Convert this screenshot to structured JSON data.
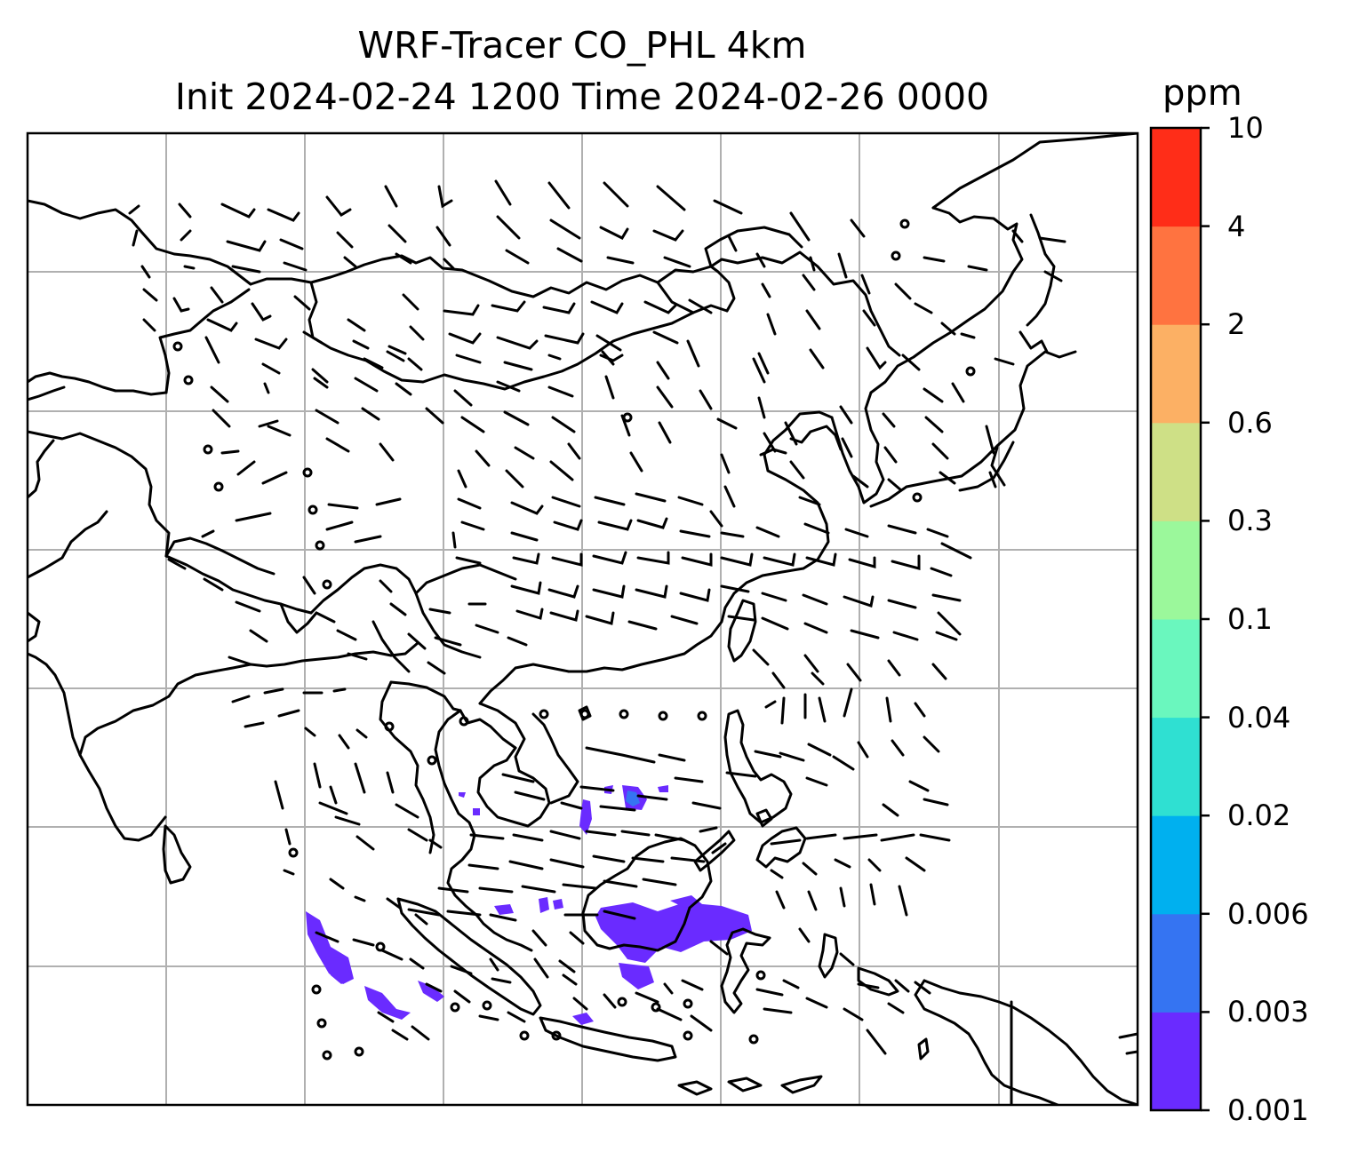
{
  "title": {
    "line1": "WRF-Tracer CO_PHL 4km",
    "line2": "Init 2024-02-24 1200 Time 2024-02-26 0000"
  },
  "colorbar": {
    "unit": "ppm",
    "levels": [
      "0.001",
      "0.003",
      "0.006",
      "0.02",
      "0.04",
      "0.1",
      "0.3",
      "0.6",
      "2",
      "4",
      "10"
    ],
    "colors": [
      "#6a2bff",
      "#3574f2",
      "#00b0ef",
      "#2fe0d2",
      "#6af7be",
      "#9bf89b",
      "#cee086",
      "#fcb064",
      "#ff7340",
      "#ff2d18"
    ]
  },
  "map": {
    "gridlines": true,
    "coastline_color": "#000000",
    "tracer_color": "#6a2bff",
    "wind_barbs": "black"
  }
}
